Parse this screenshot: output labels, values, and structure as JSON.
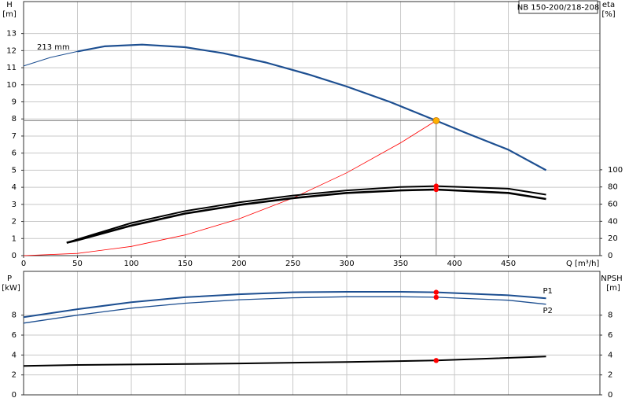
{
  "chart_data": [
    {
      "type": "line",
      "title": "NB 150-200/218-208",
      "y_label": "H",
      "y_unit": "[m]",
      "y2_label": "eta",
      "y2_unit": "[%]",
      "x_label": "Q [m³/h]",
      "annotation": "213 mm",
      "xlim": [
        0,
        535
      ],
      "xticks": [
        0,
        50,
        100,
        150,
        200,
        250,
        300,
        350,
        400,
        450
      ],
      "ylim": [
        0,
        14.87
      ],
      "yticks": [
        0,
        1,
        2,
        3,
        4,
        5,
        6,
        7,
        8,
        9,
        10,
        11,
        12,
        13
      ],
      "y2lim": [
        0,
        296
      ],
      "y2ticks": [
        0,
        20,
        40,
        60,
        80,
        100
      ],
      "grid": true,
      "duty_point": {
        "x": 383,
        "y": 7.9,
        "color": "#ffb000",
        "line_color": "#808080"
      },
      "series": [
        {
          "color": "#1d4f91",
          "line_width": 1,
          "x": [
            0,
            25,
            50
          ],
          "values": [
            11.1,
            11.6,
            11.95
          ]
        },
        {
          "color": "#1d4f91",
          "line_width": 2.2,
          "x": [
            50,
            75,
            110,
            150,
            185,
            225,
            265,
            300,
            340,
            383,
            410,
            450,
            485
          ],
          "values": [
            11.95,
            12.25,
            12.35,
            12.2,
            11.85,
            11.3,
            10.6,
            9.9,
            9.0,
            7.9,
            7.2,
            6.2,
            5.0
          ]
        },
        {
          "color": "#ff0000",
          "line_width": 0.8,
          "x": [
            0,
            50,
            100,
            150,
            200,
            250,
            300,
            350,
            383
          ],
          "values": [
            0,
            0.13,
            0.54,
            1.21,
            2.15,
            3.37,
            4.85,
            6.6,
            7.9
          ]
        },
        {
          "color": "#000000",
          "line_width": 2,
          "axis": "y2",
          "markers": true,
          "marker_color": "#ff0000",
          "x": [
            40,
            50,
            100,
            150,
            200,
            250,
            300,
            350,
            383,
            450,
            485
          ],
          "values": [
            15,
            19,
            38,
            52,
            62,
            70,
            76,
            80,
            81,
            78,
            71
          ]
        },
        {
          "color": "#000000",
          "line_width": 2.6,
          "axis": "y2",
          "markers": true,
          "marker_color": "#ff0000",
          "x": [
            40,
            50,
            100,
            150,
            200,
            250,
            300,
            350,
            383,
            450,
            485
          ],
          "values": [
            15,
            18,
            35,
            49,
            59,
            67,
            73,
            76,
            77,
            73,
            66
          ]
        }
      ]
    },
    {
      "type": "line",
      "y_label": "P",
      "y_unit": "[kW]",
      "y2_label": "NPSH",
      "y2_unit": "[m]",
      "xlim": [
        0,
        535
      ],
      "ylim": [
        0,
        12.4
      ],
      "yticks": [
        0,
        2,
        4,
        6,
        8
      ],
      "y2lim": [
        0,
        12.4
      ],
      "y2ticks": [
        0,
        2,
        4,
        6,
        8
      ],
      "grid": true,
      "series": [
        {
          "name": "P1",
          "color": "#1d4f91",
          "line_width": 2,
          "markers": true,
          "marker_color": "#ff0000",
          "x": [
            0,
            50,
            100,
            150,
            200,
            250,
            300,
            350,
            383,
            450,
            485
          ],
          "values": [
            7.8,
            8.6,
            9.3,
            9.8,
            10.1,
            10.3,
            10.35,
            10.35,
            10.3,
            10.0,
            9.7
          ]
        },
        {
          "name": "P2",
          "color": "#1d4f91",
          "line_width": 1.3,
          "markers": true,
          "marker_color": "#ff0000",
          "x": [
            0,
            50,
            100,
            150,
            200,
            250,
            300,
            350,
            383,
            450,
            485
          ],
          "values": [
            7.2,
            8.0,
            8.7,
            9.2,
            9.55,
            9.75,
            9.85,
            9.85,
            9.8,
            9.5,
            9.1
          ]
        },
        {
          "color": "#000000",
          "line_width": 2,
          "axis": "y2",
          "markers": true,
          "marker_color": "#ff0000",
          "x": [
            0,
            50,
            100,
            200,
            300,
            383,
            485
          ],
          "values": [
            2.9,
            3.0,
            3.05,
            3.15,
            3.3,
            3.45,
            3.85
          ]
        }
      ]
    }
  ]
}
